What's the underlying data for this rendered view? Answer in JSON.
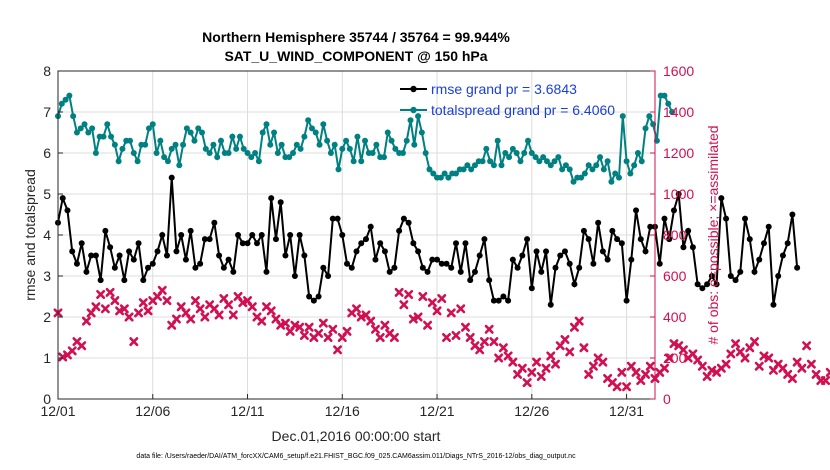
{
  "chart_data": {
    "type": "line",
    "title": "Northern Hemisphere 35744 / 35764 = 99.944%",
    "subtitle": "SAT_U_WIND_COMPONENT @ 150 hPa",
    "xlabel": "Dec.01,2016 00:00:00 start",
    "ylabel_left": "rmse and totalspread",
    "ylabel_right": "# of obs: o=possible; ×=assimilated",
    "xlim": [
      0,
      31.5
    ],
    "ylim_left": [
      0,
      8
    ],
    "ylim_right": [
      0,
      1600
    ],
    "x_ticks": [
      0,
      5,
      10,
      15,
      20,
      25,
      30
    ],
    "x_tick_labels": [
      "12/01",
      "12/06",
      "12/11",
      "12/16",
      "12/21",
      "12/26",
      "12/31"
    ],
    "y_ticks_left": [
      0,
      1,
      2,
      3,
      4,
      5,
      6,
      7,
      8
    ],
    "y_ticks_right": [
      0,
      200,
      400,
      600,
      800,
      1000,
      1200,
      1400,
      1600
    ],
    "grid": true,
    "legend_position": "top-right",
    "colors": {
      "rmse": "#000000",
      "totalspread": "#008080",
      "obs": "#d01050",
      "right_axis": "#d01050",
      "legend_text": "#1a3fd6"
    },
    "series": [
      {
        "name": "rmse grand pr = 3.6843",
        "axis": "left",
        "values": [
          4.3,
          4.9,
          4.6,
          3.6,
          3.3,
          3.8,
          3.1,
          3.5,
          3.5,
          2.9,
          4.1,
          3.7,
          3.2,
          3.5,
          2.9,
          3.6,
          3.4,
          3.8,
          2.9,
          3.2,
          3.3,
          3.6,
          4.0,
          3.5,
          5.4,
          3.6,
          4.0,
          3.4,
          4.1,
          3.2,
          3.3,
          3.9,
          3.9,
          4.3,
          3.5,
          3.2,
          3.4,
          3.1,
          4.0,
          3.8,
          3.8,
          4.0,
          3.8,
          4.0,
          3.1,
          4.9,
          3.9,
          4.8,
          3.5,
          4.0,
          3.0,
          4.0,
          3.5,
          2.5,
          2.4,
          2.5,
          3.2,
          3.0,
          4.4,
          4.4,
          4.0,
          3.3,
          3.2,
          3.6,
          3.8,
          3.9,
          4.2,
          3.4,
          3.8,
          3.6,
          3.1,
          3.2,
          4.1,
          4.4,
          4.3,
          3.8,
          3.6,
          3.2,
          3.1,
          3.4,
          3.4,
          3.3,
          3.3,
          3.2,
          3.8,
          3.1,
          3.8,
          2.9,
          3.1,
          3.5,
          3.9,
          2.9,
          2.4,
          2.4,
          2.5,
          2.4,
          3.4,
          3.2,
          3.5,
          3.9,
          2.7,
          3.6,
          3.1,
          3.6,
          2.3,
          3.2,
          3.5,
          3.6,
          3.3,
          2.8,
          3.2,
          4.1,
          3.9,
          3.3,
          4.3,
          3.6,
          3.4,
          4.1,
          3.9,
          3.8,
          2.4,
          3.4,
          4.6,
          3.9,
          3.6,
          4.2,
          4.2,
          3.3,
          4.4,
          3.9,
          4.6,
          5.0,
          3.7,
          4.1,
          3.7,
          2.8,
          2.7,
          2.8,
          3.0,
          2.8,
          4.9,
          4.4,
          3.0,
          2.9,
          3.1,
          4.4,
          3.9,
          3.1,
          3.4,
          3.8,
          4.2,
          2.3,
          3.0,
          3.5,
          3.8,
          4.5,
          3.2
        ],
        "x_start": 0,
        "x_step": 0.25
      },
      {
        "name": "totalspread grand pr = 6.4060",
        "axis": "left",
        "values": [
          6.9,
          7.2,
          7.3,
          7.4,
          6.9,
          6.5,
          6.6,
          6.7,
          6.5,
          6.6,
          6.0,
          6.4,
          6.4,
          6.7,
          6.4,
          6.2,
          5.8,
          6.1,
          6.3,
          6.3,
          6.0,
          5.8,
          6.2,
          6.2,
          6.6,
          6.7,
          6.0,
          6.3,
          5.9,
          5.8,
          6.1,
          6.2,
          5.7,
          6.2,
          6.6,
          6.5,
          6.3,
          6.6,
          6.5,
          6.1,
          6.0,
          6.2,
          5.9,
          6.3,
          6.0,
          6.0,
          6.4,
          6.1,
          6.4,
          6.1,
          6.0,
          5.9,
          6.0,
          5.8,
          6.5,
          6.7,
          6.2,
          6.5,
          6.0,
          6.2,
          5.9,
          5.9,
          6.0,
          6.2,
          6.1,
          6.4,
          6.8,
          6.6,
          6.5,
          6.2,
          6.7,
          6.3,
          6.0,
          6.2,
          5.6,
          6.1,
          6.3,
          6.1,
          5.8,
          6.4,
          5.8,
          6.3,
          6.0,
          6.0,
          6.2,
          5.9,
          5.9,
          6.5,
          6.3,
          6.1,
          6.0,
          6.0,
          6.3,
          6.8,
          6.2,
          6.9,
          6.5,
          6.0,
          5.6,
          5.5,
          5.4,
          5.4,
          5.5,
          5.4,
          5.5,
          5.5,
          5.6,
          5.6,
          5.7,
          5.6,
          5.7,
          5.8,
          5.8,
          6.1,
          5.8,
          5.7,
          6.3,
          5.7,
          6.0,
          5.9,
          6.1,
          6.0,
          5.8,
          6.0,
          6.3,
          6.0,
          5.9,
          5.8,
          5.9,
          5.8,
          5.7,
          5.8,
          5.9,
          5.6,
          5.7,
          5.6,
          5.3,
          5.4,
          5.4,
          5.5,
          5.7,
          5.6,
          5.7,
          5.9,
          5.6,
          5.8,
          5.3,
          5.5,
          5.4,
          6.9,
          5.8,
          5.5,
          5.7,
          6.0,
          5.8,
          6.6,
          6.9,
          6.7,
          6.3,
          7.4,
          7.4,
          7.2,
          7.0
        ],
        "x_start": 0,
        "x_step": 0.2
      },
      {
        "name": "assimilated",
        "axis": "right",
        "markers_only": true,
        "x_start": 0,
        "x_step": 0.25,
        "values": [
          420,
          205,
          215,
          235,
          280,
          260,
          380,
          420,
          450,
          510,
          440,
          520,
          480,
          430,
          440,
          400,
          280,
          420,
          470,
          430,
          480,
          500,
          530,
          480,
          360,
          390,
          450,
          420,
          390,
          480,
          440,
          400,
          460,
          440,
          410,
          490,
          460,
          410,
          500,
          470,
          480,
          450,
          400,
          380,
          450,
          430,
          390,
          360,
          370,
          330,
          360,
          350,
          310,
          350,
          300,
          320,
          370,
          300,
          340,
          240,
          300,
          330,
          420,
          440,
          400,
          410,
          380,
          340,
          300,
          360,
          320,
          300,
          520,
          460,
          510,
          390,
          400,
          500,
          360,
          470,
          430,
          490,
          300,
          420,
          310,
          440,
          350,
          300,
          260,
          240,
          280,
          340,
          280,
          200,
          250,
          210,
          180,
          120,
          150,
          80,
          130,
          180,
          110,
          150,
          210,
          170,
          260,
          290,
          230,
          350,
          380,
          250,
          120,
          160,
          200,
          180,
          100,
          80,
          60,
          130,
          60,
          160,
          130,
          90,
          120,
          160,
          100,
          130,
          150,
          200,
          270,
          260,
          240,
          200,
          220,
          190,
          160,
          110,
          140,
          130,
          150,
          170,
          220,
          270,
          230,
          200,
          250,
          280,
          160,
          210,
          200,
          140,
          170,
          150,
          120,
          100,
          180,
          150,
          260,
          170,
          120,
          90,
          90,
          130,
          120,
          40,
          20
        ]
      }
    ]
  },
  "footer": "data file: /Users/raeder/DAI/ATM_forcXX/CAM6_setup/f.e21.FHIST_BGC.f09_025.CAM6assim.011/Diags_NTrS_2016-12/obs_diag_output.nc"
}
